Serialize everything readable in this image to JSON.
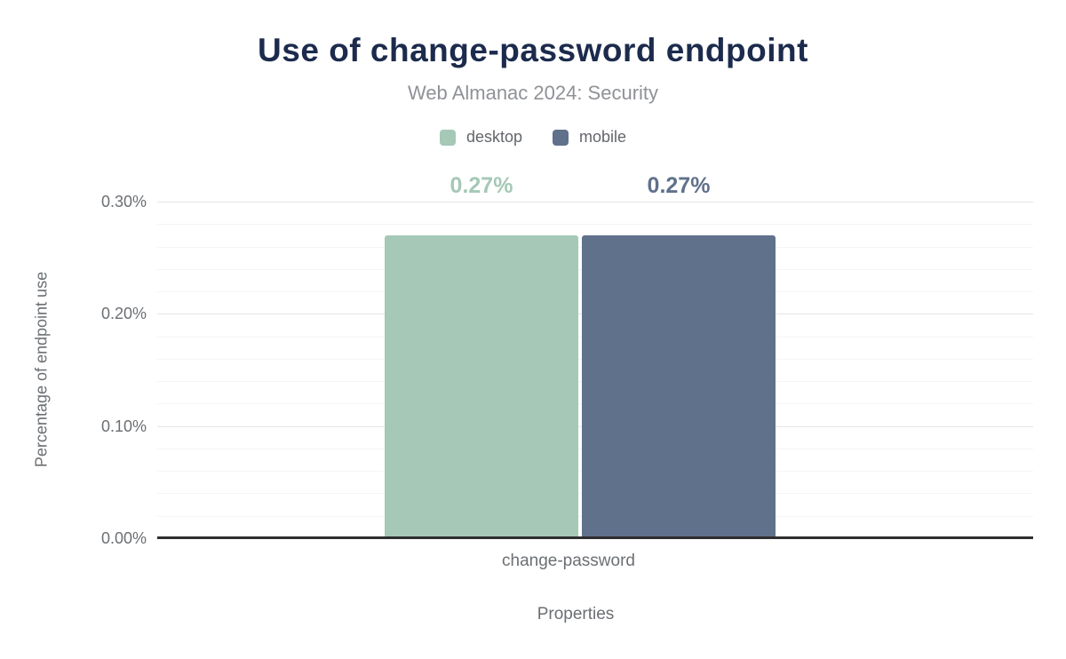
{
  "chart_data": {
    "type": "bar",
    "title": "Use of change-password endpoint",
    "subtitle": "Web Almanac 2024: Security",
    "categories": [
      "change-password"
    ],
    "series": [
      {
        "name": "desktop",
        "values": [
          0.27
        ],
        "labels": [
          "0.27%"
        ],
        "color": "#a5c8b7"
      },
      {
        "name": "mobile",
        "values": [
          0.27
        ],
        "labels": [
          "0.27%"
        ],
        "color": "#60718c"
      }
    ],
    "xlabel": "Properties",
    "ylabel": "Percentage of endpoint use",
    "ylim": [
      0,
      0.3
    ],
    "yticks": [
      "0.00%",
      "0.10%",
      "0.20%",
      "0.30%"
    ],
    "ytick_values": [
      0,
      0.1,
      0.2,
      0.3
    ],
    "minor_grid_step": 0.02,
    "grid": "on",
    "legend_position": "top",
    "unit": "%"
  },
  "palette": {
    "title": "#1c2b4d",
    "subtitle": "#8f9296",
    "legend_text": "#63666a",
    "axis_text": "#6b6f73",
    "grid_major": "#e5e5e5",
    "grid_minor": "#f4f4f4",
    "axis_line": "#2e2e2e",
    "desktop": "#a5c8b7",
    "mobile": "#60718c"
  }
}
